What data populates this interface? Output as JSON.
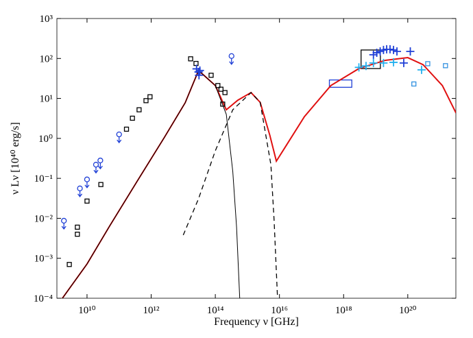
{
  "chart_data": {
    "type": "sed",
    "xlabel": "Frequency ν [GHz]",
    "ylabel": "ν Lν [10⁴⁰ erg/s]",
    "xscale": "log",
    "yscale": "log",
    "xlim": [
      1150000000.0,
      3.16e+21
    ],
    "ylim": [
      0.0001,
      1000
    ],
    "xticks": [
      {
        "value": 10000000000.0,
        "label": "10¹⁰"
      },
      {
        "value": 1000000000000.0,
        "label": "10¹²"
      },
      {
        "value": 100000000000000.0,
        "label": "10¹⁴"
      },
      {
        "value": 1e+16,
        "label": "10¹⁶"
      },
      {
        "value": 1e+18,
        "label": "10¹⁸"
      },
      {
        "value": 1e+20,
        "label": "10²⁰"
      }
    ],
    "yticks": [
      {
        "value": 0.0001,
        "label": "10⁻⁴"
      },
      {
        "value": 0.001,
        "label": "10⁻³"
      },
      {
        "value": 0.01,
        "label": "10⁻²"
      },
      {
        "value": 0.1,
        "label": "10⁻¹"
      },
      {
        "value": 1,
        "label": "10⁰"
      },
      {
        "value": 10,
        "label": "10¹"
      },
      {
        "value": 100,
        "label": "10²"
      },
      {
        "value": 1000,
        "label": "10³"
      }
    ],
    "series": [
      {
        "style": "line",
        "color": "#e01010",
        "width": 2,
        "x": [
          1600000000.0,
          10000000000.0,
          50000000000.0,
          360000000000.0,
          2600000000000.0,
          11500000000000.0,
          30000000000000.0,
          100000000000000.0,
          220000000000000.0,
          500000000000000.0,
          1300000000000000.0,
          2500000000000000.0,
          5000000000000000.0,
          8000000000000000.0,
          1.5e+16,
          6e+16,
          4e+17,
          3e+18,
          2e+19,
          1e+20,
          3e+20,
          1.2e+21,
          3.2e+21
        ],
        "values": [
          9.3e-05,
          0.00072,
          0.0063,
          0.083,
          1.07,
          7.8,
          50,
          21,
          5.2,
          9,
          14,
          8,
          1.2,
          0.27,
          0.6,
          3.5,
          21,
          56,
          90,
          105,
          70,
          21,
          4.3
        ]
      },
      {
        "style": "line",
        "color": "#000000",
        "width": 1,
        "x": [
          1600000000.0,
          10000000000.0,
          50000000000.0,
          360000000000.0,
          2600000000000.0,
          11500000000000.0,
          30000000000000.0,
          100000000000000.0,
          220000000000000.0,
          350000000000000.0,
          460000000000000.0,
          580000000000000.0
        ],
        "values": [
          9.3e-05,
          0.00072,
          0.0063,
          0.083,
          1.07,
          7.8,
          50,
          21,
          4,
          0.15,
          0.006,
          9e-05
        ]
      },
      {
        "style": "dashed",
        "color": "#000000",
        "width": 1.3,
        "x": [
          10000000000000.0,
          30000000000000.0,
          100000000000000.0,
          350000000000000.0,
          1300000000000000.0,
          2500000000000000.0,
          5400000000000000.0,
          6800000000000000.0,
          8700000000000000.0
        ],
        "values": [
          0.0038,
          0.031,
          0.49,
          5.2,
          14,
          8,
          0.22,
          0.009,
          0.0001
        ]
      },
      {
        "style": "square",
        "color": "#000000",
        "x": [
          2800000000.0,
          5000000000.0,
          5000000000.0,
          10000000000.0,
          27000000000.0,
          170000000000.0,
          260000000000.0,
          420000000000.0,
          690000000000.0,
          920000000000.0,
          17000000000000.0,
          25000000000000.0,
          74000000000000.0,
          120000000000000.0,
          150000000000000.0,
          200000000000000.0,
          170000000000000.0
        ],
        "values": [
          0.0007,
          0.004,
          0.006,
          0.027,
          0.07,
          1.7,
          3.2,
          5.2,
          8.8,
          11,
          98,
          75,
          38,
          21,
          17,
          14,
          7.2
        ]
      },
      {
        "style": "circle-arrow",
        "color": "#1f3fd6",
        "x": [
          1900000000.0,
          6000000000.0,
          10000000000.0,
          19000000000.0,
          26000000000.0,
          100000000000.0,
          320000000000000.0
        ],
        "values": [
          0.0087,
          0.056,
          0.094,
          0.22,
          0.28,
          1.26,
          115
        ]
      },
      {
        "style": "cross",
        "color": "#1f3fd6",
        "x": [
          26000000000000.0,
          30000000000000.0,
          31000000000000.0,
          33000000000000.0,
          8.5e+18,
          1.08e+19,
          1.38e+19,
          1.75e+19,
          2.2e+19,
          2.8e+19,
          3.6e+19,
          4.6e+19,
          7.5e+19,
          1.2e+20
        ],
        "values": [
          55,
          46,
          38,
          50,
          124,
          139,
          150,
          163,
          170,
          170,
          163,
          150,
          77,
          150
        ]
      },
      {
        "style": "cross",
        "color": "#22b0ee",
        "x": [
          3e+18,
          5e+18,
          8.5e+18,
          1.75e+19,
          3.6e+19,
          2.7e+20
        ],
        "values": [
          60,
          65,
          77,
          77,
          80,
          52
        ]
      },
      {
        "style": "square",
        "color": "#3090e0",
        "x": [
          1.55e+20,
          4.2e+20,
          1.5e+21
        ],
        "values": [
          23,
          74,
          66
        ]
      }
    ],
    "boxes": [
      {
        "color": "#1f3fd6",
        "x": [
          3.6e+17,
          1.8e+18
        ],
        "values": [
          19,
          29
        ]
      },
      {
        "color": "#000000",
        "x": [
          3.5e+18,
          1.4e+19
        ],
        "values": [
          56,
          163
        ]
      }
    ]
  }
}
